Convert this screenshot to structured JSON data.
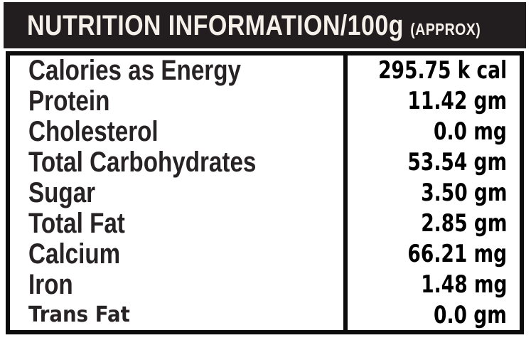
{
  "header": {
    "title": "NUTRITION INFORMATION/100g",
    "approx": "(APPROX)"
  },
  "table": {
    "rows": [
      {
        "label": "Calories as Energy",
        "value": "295.75 k cal",
        "style": "default"
      },
      {
        "label": "Protein",
        "value": "11.42 gm",
        "style": "default"
      },
      {
        "label": "Cholesterol",
        "value": "0.0 mg",
        "style": "default"
      },
      {
        "label": "Total Carbohydrates",
        "value": "53.54 gm",
        "style": "default"
      },
      {
        "label": "Sugar",
        "value": "3.50 gm",
        "style": "default"
      },
      {
        "label": "Total Fat",
        "value": "2.85 gm",
        "style": "default"
      },
      {
        "label": "Calcium",
        "value": "66.21 mg",
        "style": "default"
      },
      {
        "label": "Iron",
        "value": "1.48 mg",
        "style": "default"
      },
      {
        "label": "Trans Fat",
        "value": "0.0 gm",
        "style": "alt"
      }
    ]
  },
  "colors": {
    "header_bg": "#221e1f",
    "header_text": "#f5f1ea",
    "border": "#0b0b0b",
    "label_text": "#272223",
    "value_text": "#000000",
    "background": "#ffffff"
  }
}
